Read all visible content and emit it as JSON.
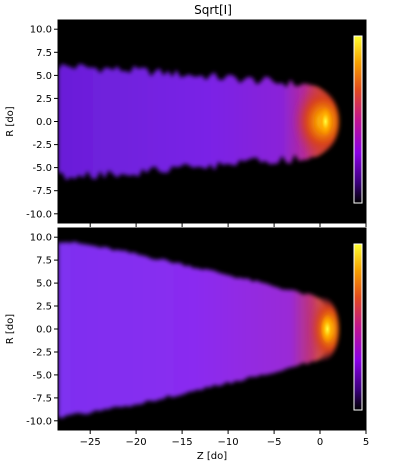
{
  "title": "Sqrt[I]",
  "chart_data": [
    {
      "type": "heatmap",
      "panel": "top",
      "ylabel": "R [do]",
      "xlim": [
        -28.5,
        5
      ],
      "ylim": [
        -11,
        11
      ],
      "yticks": [
        -10.0,
        -7.5,
        -5.0,
        -2.5,
        0.0,
        2.5,
        5.0,
        7.5,
        10.0
      ],
      "colormap": "gnuplot",
      "background": "#000000",
      "jet": {
        "z_start": -28.5,
        "half_width_at_start": 6.0,
        "tip_z": 1.3,
        "half_width_near_tip": 3.9,
        "edge_roughness": "irregular",
        "hot_region_z": [
          -3.5,
          1.3
        ],
        "peak_z": 0.6,
        "peak_r": 0.0
      }
    },
    {
      "type": "heatmap",
      "panel": "bottom",
      "ylabel": "R [do]",
      "xlabel": "Z [do]",
      "xlim": [
        -28.5,
        5
      ],
      "ylim": [
        -11,
        11
      ],
      "xticks": [
        -25,
        -20,
        -15,
        -10,
        -5,
        0,
        5
      ],
      "yticks": [
        -10.0,
        -7.5,
        -5.0,
        -2.5,
        0.0,
        2.5,
        5.0,
        7.5,
        10.0
      ],
      "colormap": "gnuplot",
      "background": "#000000",
      "jet": {
        "z_start": -28.5,
        "half_width_at_start": 9.6,
        "tip_z": 1.3,
        "half_width_near_tip": 3.6,
        "edge_roughness": "smooth",
        "hot_region_z": [
          -1.5,
          1.3
        ],
        "peak_z": 0.8,
        "peak_r": 0.0
      }
    }
  ]
}
